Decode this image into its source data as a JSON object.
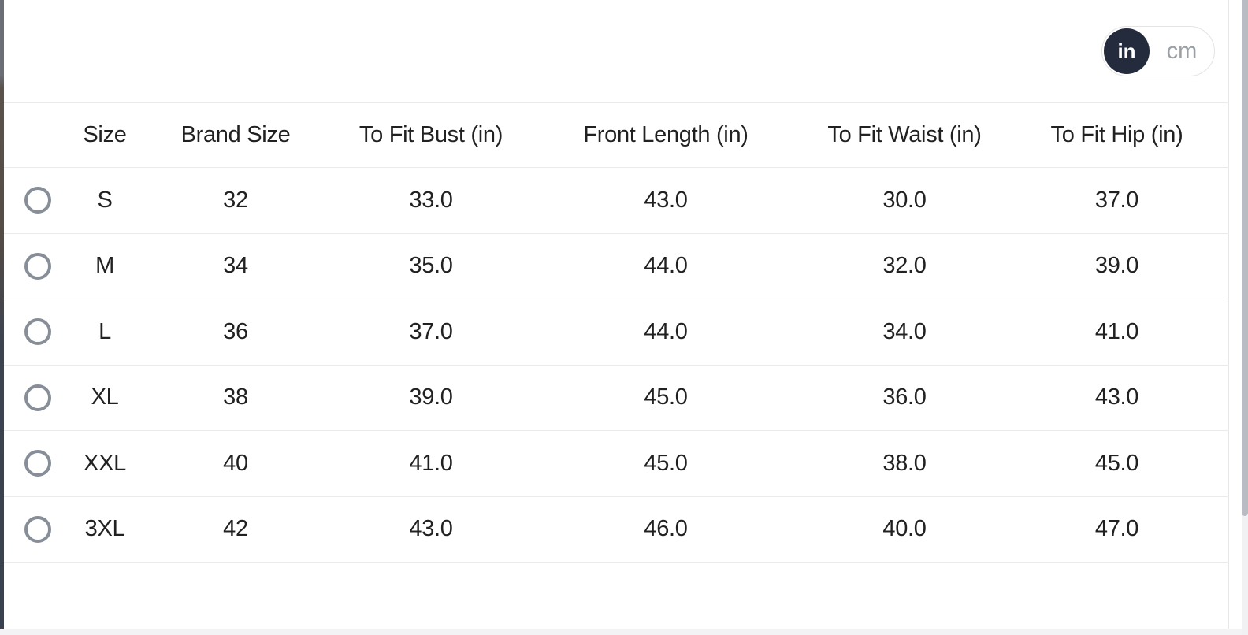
{
  "unit_toggle": {
    "selected": "in",
    "options": {
      "in": "in",
      "cm": "cm"
    }
  },
  "table": {
    "columns": [
      "Size",
      "Brand Size",
      "To Fit Bust (in)",
      "Front Length (in)",
      "To Fit Waist (in)",
      "To Fit Hip (in)"
    ],
    "rows": [
      [
        "S",
        "32",
        "33.0",
        "43.0",
        "30.0",
        "37.0"
      ],
      [
        "M",
        "34",
        "35.0",
        "44.0",
        "32.0",
        "39.0"
      ],
      [
        "L",
        "36",
        "37.0",
        "44.0",
        "34.0",
        "41.0"
      ],
      [
        "XL",
        "38",
        "39.0",
        "45.0",
        "36.0",
        "43.0"
      ],
      [
        "XXL",
        "40",
        "41.0",
        "45.0",
        "38.0",
        "45.0"
      ],
      [
        "3XL",
        "42",
        "43.0",
        "46.0",
        "40.0",
        "47.0"
      ]
    ]
  },
  "colors": {
    "toggle_active_bg": "#242b3d",
    "toggle_active_text": "#ffffff",
    "toggle_inactive_text": "#9aa0a6",
    "radio_border": "#878e98",
    "row_divider": "#eaeaea",
    "text": "#212121"
  }
}
